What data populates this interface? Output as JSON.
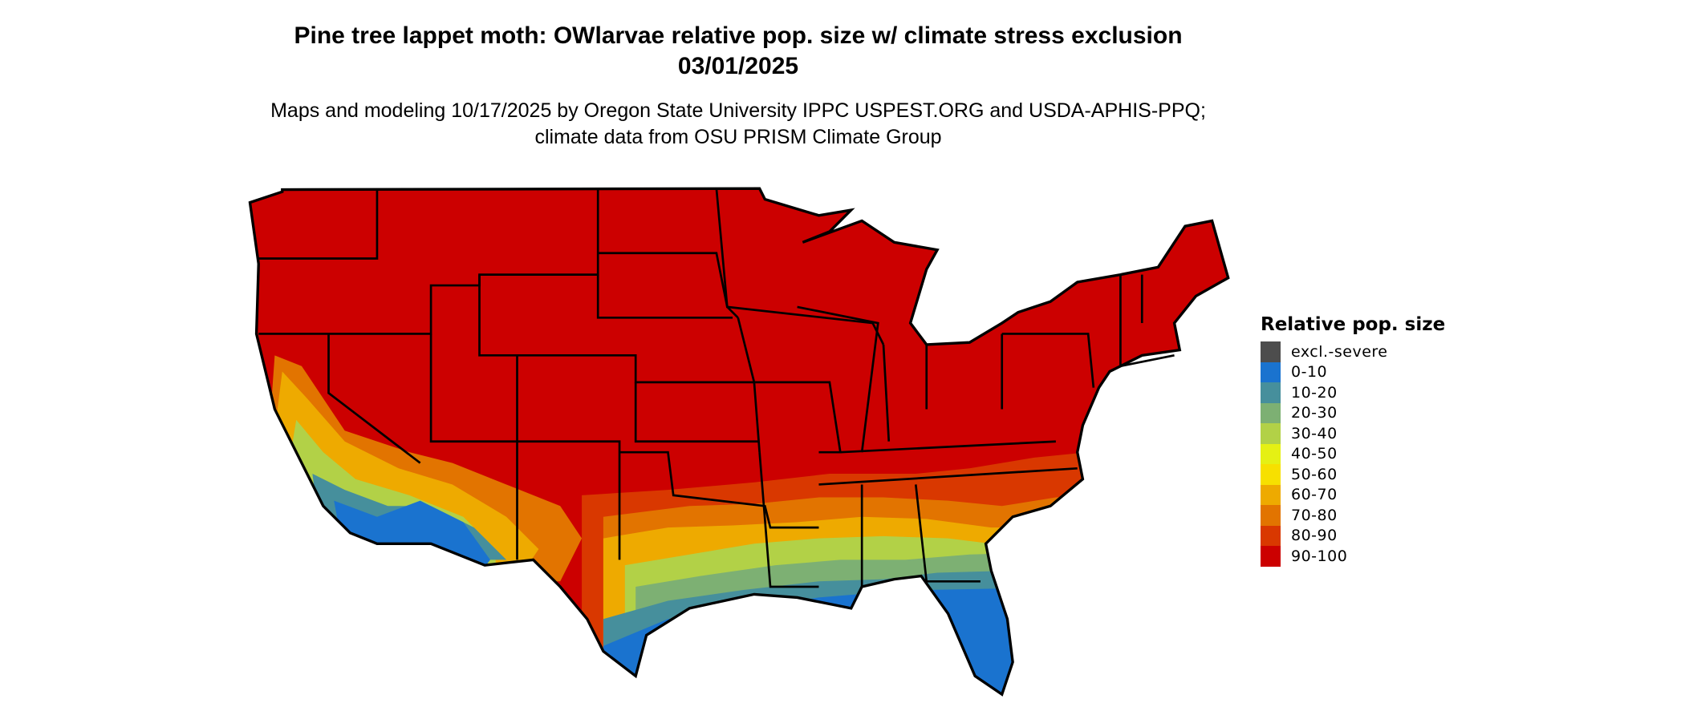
{
  "title": "Pine tree lappet moth: OWlarvae relative pop. size w/ climate stress exclusion 03/01/2025",
  "subtitle": "Maps and modeling 10/17/2025 by Oregon State University IPPC USPEST.ORG and USDA-APHIS-PPQ; climate data from OSU PRISM Climate Group",
  "map": {
    "region": "Contiguous United States",
    "dominant_class": "90-100"
  },
  "legend": {
    "title": "Relative pop. size",
    "items": [
      {
        "label": "excl.-severe",
        "color": "#4d4d4d"
      },
      {
        "label": "0-10",
        "color": "#1a73cf"
      },
      {
        "label": "10-20",
        "color": "#468f9c"
      },
      {
        "label": "20-30",
        "color": "#7db073"
      },
      {
        "label": "30-40",
        "color": "#b2d147"
      },
      {
        "label": "40-50",
        "color": "#e5f014"
      },
      {
        "label": "50-60",
        "color": "#f7e000"
      },
      {
        "label": "60-70",
        "color": "#eeaa00"
      },
      {
        "label": "70-80",
        "color": "#e27400"
      },
      {
        "label": "80-90",
        "color": "#d93800"
      },
      {
        "label": "90-100",
        "color": "#cc0000"
      }
    ]
  }
}
